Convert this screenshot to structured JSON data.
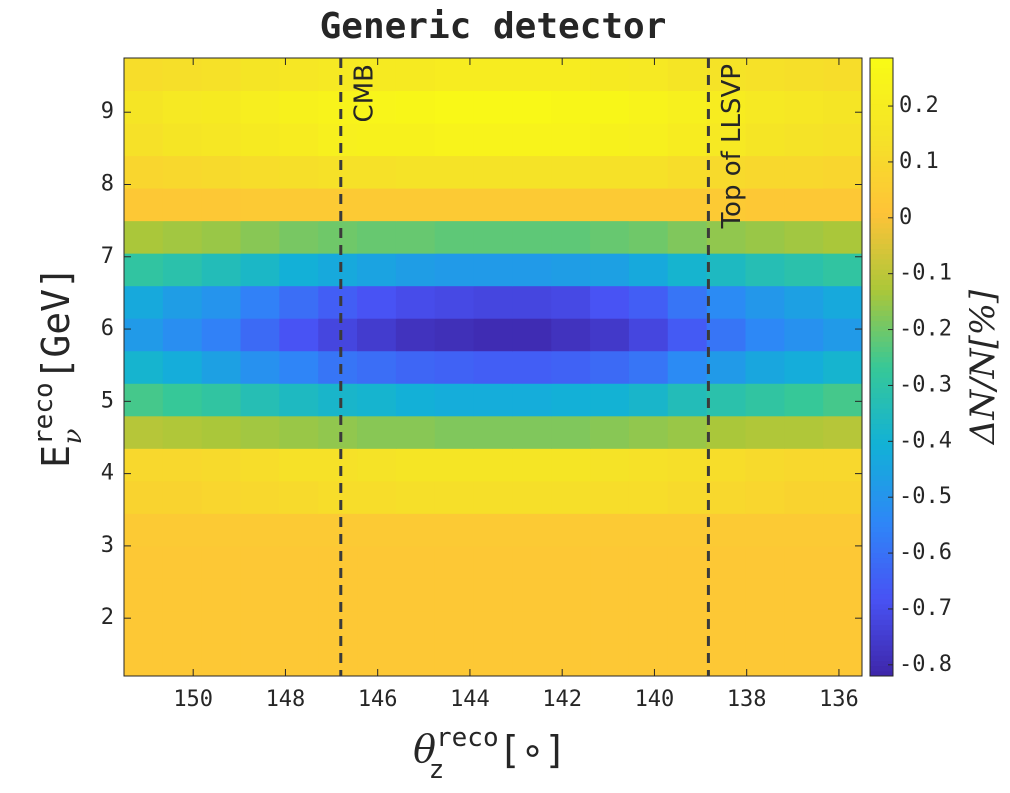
{
  "chart_data": {
    "type": "heatmap",
    "title": "Generic detector",
    "xlabel": {
      "symbol": "θ",
      "sub": "z",
      "sup": "reco",
      "unit": "[∘]"
    },
    "ylabel": {
      "symbol": "E",
      "sub": "ν",
      "sup": "reco",
      "unit": "[GeV]"
    },
    "colorbar_label": "ΔN/N[%]",
    "colormap": "parula",
    "xlim": [
      151.5,
      135.5
    ],
    "ylim": [
      1.2,
      9.75
    ],
    "xticks": [
      150,
      148,
      146,
      144,
      142,
      140,
      138,
      136
    ],
    "yticks": [
      2,
      3,
      4,
      5,
      6,
      7,
      8,
      9
    ],
    "clim": [
      -0.82,
      0.286
    ],
    "cticks": [
      0.2,
      0.1,
      0,
      -0.1,
      -0.2,
      -0.3,
      -0.4,
      -0.5,
      -0.6,
      -0.7,
      -0.8
    ],
    "xbins": [
      151.5,
      150.658,
      149.816,
      148.974,
      148.132,
      147.289,
      146.447,
      145.605,
      144.763,
      143.921,
      143.079,
      142.237,
      141.395,
      140.553,
      139.711,
      138.868,
      138.026,
      137.184,
      136.342,
      135.5
    ],
    "ybins": [
      1.2,
      1.65,
      2.1,
      2.55,
      3.0,
      3.45,
      3.9,
      4.35,
      4.8,
      5.25,
      5.7,
      6.15,
      6.6,
      7.05,
      7.5,
      7.95,
      8.4,
      8.85,
      9.3,
      9.75
    ],
    "z": [
      [
        0.03,
        0.03,
        0.03,
        0.03,
        0.03,
        0.03,
        0.03,
        0.03,
        0.03,
        0.03,
        0.03,
        0.03,
        0.03,
        0.03,
        0.03,
        0.03,
        0.03,
        0.03,
        0.03
      ],
      [
        0.03,
        0.03,
        0.03,
        0.03,
        0.03,
        0.03,
        0.03,
        0.03,
        0.03,
        0.03,
        0.03,
        0.03,
        0.03,
        0.03,
        0.03,
        0.03,
        0.03,
        0.03,
        0.03
      ],
      [
        0.03,
        0.03,
        0.03,
        0.03,
        0.03,
        0.03,
        0.03,
        0.03,
        0.03,
        0.03,
        0.03,
        0.03,
        0.03,
        0.03,
        0.03,
        0.03,
        0.03,
        0.03,
        0.03
      ],
      [
        0.03,
        0.03,
        0.03,
        0.03,
        0.03,
        0.03,
        0.03,
        0.03,
        0.03,
        0.03,
        0.03,
        0.03,
        0.03,
        0.03,
        0.03,
        0.03,
        0.03,
        0.03,
        0.03
      ],
      [
        0.04,
        0.04,
        0.04,
        0.04,
        0.04,
        0.04,
        0.04,
        0.04,
        0.04,
        0.04,
        0.04,
        0.04,
        0.04,
        0.04,
        0.04,
        0.04,
        0.04,
        0.04,
        0.04
      ],
      [
        0.08,
        0.08,
        0.09,
        0.1,
        0.11,
        0.12,
        0.12,
        0.13,
        0.13,
        0.13,
        0.13,
        0.13,
        0.12,
        0.12,
        0.11,
        0.1,
        0.09,
        0.08,
        0.08
      ],
      [
        0.1,
        0.1,
        0.11,
        0.12,
        0.14,
        0.14,
        0.15,
        0.16,
        0.16,
        0.16,
        0.16,
        0.16,
        0.15,
        0.14,
        0.13,
        0.12,
        0.11,
        0.1,
        0.1
      ],
      [
        -0.11,
        -0.12,
        -0.13,
        -0.14,
        -0.15,
        -0.16,
        -0.17,
        -0.17,
        -0.18,
        -0.18,
        -0.18,
        -0.18,
        -0.17,
        -0.16,
        -0.15,
        -0.13,
        -0.12,
        -0.12,
        -0.11
      ],
      [
        -0.25,
        -0.27,
        -0.29,
        -0.33,
        -0.36,
        -0.38,
        -0.39,
        -0.41,
        -0.42,
        -0.42,
        -0.42,
        -0.41,
        -0.4,
        -0.38,
        -0.34,
        -0.31,
        -0.29,
        -0.27,
        -0.25
      ],
      [
        -0.39,
        -0.42,
        -0.46,
        -0.51,
        -0.55,
        -0.59,
        -0.61,
        -0.63,
        -0.64,
        -0.65,
        -0.65,
        -0.64,
        -0.62,
        -0.59,
        -0.53,
        -0.48,
        -0.44,
        -0.42,
        -0.39
      ],
      [
        -0.48,
        -0.52,
        -0.56,
        -0.62,
        -0.68,
        -0.72,
        -0.75,
        -0.78,
        -0.79,
        -0.8,
        -0.8,
        -0.78,
        -0.76,
        -0.72,
        -0.66,
        -0.59,
        -0.54,
        -0.51,
        -0.48
      ],
      [
        -0.43,
        -0.47,
        -0.5,
        -0.56,
        -0.61,
        -0.65,
        -0.68,
        -0.7,
        -0.71,
        -0.72,
        -0.72,
        -0.71,
        -0.68,
        -0.65,
        -0.59,
        -0.53,
        -0.49,
        -0.46,
        -0.43
      ],
      [
        -0.29,
        -0.31,
        -0.34,
        -0.37,
        -0.41,
        -0.43,
        -0.45,
        -0.47,
        -0.48,
        -0.48,
        -0.48,
        -0.47,
        -0.46,
        -0.43,
        -0.39,
        -0.36,
        -0.33,
        -0.31,
        -0.29
      ],
      [
        -0.13,
        -0.14,
        -0.15,
        -0.17,
        -0.19,
        -0.2,
        -0.21,
        -0.21,
        -0.22,
        -0.22,
        -0.22,
        -0.22,
        -0.21,
        -0.2,
        -0.18,
        -0.16,
        -0.15,
        -0.14,
        -0.13
      ],
      [
        0.03,
        0.03,
        0.03,
        0.04,
        0.04,
        0.04,
        0.04,
        0.04,
        0.04,
        0.04,
        0.04,
        0.04,
        0.04,
        0.04,
        0.04,
        0.04,
        0.03,
        0.03,
        0.03
      ],
      [
        0.09,
        0.1,
        0.11,
        0.12,
        0.13,
        0.14,
        0.14,
        0.15,
        0.15,
        0.15,
        0.15,
        0.15,
        0.14,
        0.14,
        0.12,
        0.11,
        0.1,
        0.1,
        0.09
      ],
      [
        0.14,
        0.16,
        0.17,
        0.19,
        0.2,
        0.22,
        0.23,
        0.23,
        0.24,
        0.24,
        0.24,
        0.24,
        0.23,
        0.22,
        0.2,
        0.18,
        0.16,
        0.15,
        0.14
      ],
      [
        0.16,
        0.18,
        0.19,
        0.21,
        0.23,
        0.24,
        0.25,
        0.26,
        0.27,
        0.27,
        0.27,
        0.26,
        0.26,
        0.24,
        0.22,
        0.2,
        0.18,
        0.17,
        0.16
      ],
      [
        0.12,
        0.13,
        0.14,
        0.16,
        0.17,
        0.18,
        0.19,
        0.19,
        0.2,
        0.2,
        0.2,
        0.2,
        0.19,
        0.18,
        0.16,
        0.15,
        0.14,
        0.13,
        0.12
      ]
    ],
    "annotations": [
      {
        "x": 146.8,
        "text": "CMB"
      },
      {
        "x": 138.83,
        "text": "Top of LLSVP"
      }
    ]
  }
}
